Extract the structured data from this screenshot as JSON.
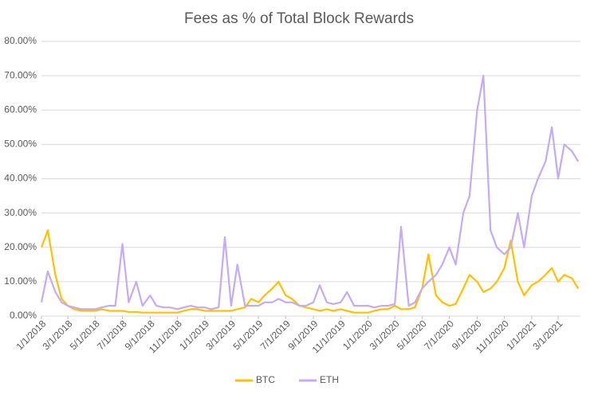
{
  "chart_data": {
    "type": "line",
    "title": "Fees as % of Total Block Rewards",
    "x": [
      "1/1/2018",
      "1/15/2018",
      "2/1/2018",
      "2/15/2018",
      "3/1/2018",
      "3/15/2018",
      "4/1/2018",
      "4/15/2018",
      "5/1/2018",
      "5/15/2018",
      "6/1/2018",
      "6/15/2018",
      "7/1/2018",
      "7/15/2018",
      "8/1/2018",
      "8/15/2018",
      "9/1/2018",
      "9/15/2018",
      "10/1/2018",
      "10/15/2018",
      "11/1/2018",
      "11/15/2018",
      "12/1/2018",
      "12/15/2018",
      "1/1/2019",
      "1/15/2019",
      "2/1/2019",
      "2/15/2019",
      "3/1/2019",
      "3/15/2019",
      "4/1/2019",
      "4/15/2019",
      "5/1/2019",
      "5/15/2019",
      "6/1/2019",
      "6/15/2019",
      "7/1/2019",
      "7/15/2019",
      "8/1/2019",
      "8/15/2019",
      "9/1/2019",
      "9/15/2019",
      "10/1/2019",
      "10/15/2019",
      "11/1/2019",
      "11/15/2019",
      "12/1/2019",
      "12/15/2019",
      "1/1/2020",
      "1/15/2020",
      "2/1/2020",
      "2/15/2020",
      "3/1/2020",
      "3/15/2020",
      "4/1/2020",
      "4/15/2020",
      "5/1/2020",
      "5/15/2020",
      "6/1/2020",
      "6/15/2020",
      "7/1/2020",
      "7/15/2020",
      "8/1/2020",
      "8/15/2020",
      "9/1/2020",
      "9/15/2020",
      "10/1/2020",
      "10/15/2020",
      "11/1/2020",
      "11/15/2020",
      "12/1/2020",
      "12/15/2020",
      "1/1/2021",
      "1/15/2021",
      "2/1/2021",
      "2/15/2021",
      "3/1/2021",
      "3/15/2021",
      "4/1/2021",
      "4/15/2021"
    ],
    "series": [
      {
        "name": "BTC",
        "color": "#ffc000",
        "values": [
          20,
          25,
          12,
          5,
          3,
          2,
          1.5,
          1.5,
          1.5,
          2,
          1.5,
          1.5,
          1.5,
          1.2,
          1.2,
          1,
          1,
          1,
          1,
          1,
          1,
          1.5,
          2,
          2,
          1.5,
          1.5,
          1.5,
          1.5,
          1.5,
          2,
          2.5,
          5,
          4,
          6,
          8,
          10,
          6,
          5,
          3,
          2.5,
          2,
          1.5,
          2,
          1.5,
          2,
          1.5,
          1,
          1,
          1,
          1.5,
          2,
          2,
          3,
          2,
          2,
          2.5,
          8,
          18,
          6,
          4,
          3,
          3.5,
          8,
          12,
          10,
          7,
          8,
          10,
          14,
          22,
          10,
          6,
          9,
          10,
          12,
          14,
          10,
          12,
          11,
          8
        ]
      },
      {
        "name": "ETH",
        "color": "#c5aaf5",
        "values": [
          4,
          13,
          7,
          4,
          3,
          2.5,
          2,
          2,
          2,
          2.5,
          3,
          3,
          21,
          4,
          10,
          3,
          6,
          3,
          2.5,
          2.5,
          2,
          2.5,
          3,
          2.5,
          2.5,
          2,
          2.5,
          23,
          3,
          15,
          3,
          3,
          3,
          4,
          4,
          5,
          4,
          4,
          3,
          3,
          4,
          9,
          4,
          3.5,
          4,
          7,
          3,
          3,
          3,
          2.5,
          3,
          3,
          3.5,
          26,
          3,
          4,
          8,
          10,
          12,
          15,
          20,
          15,
          30,
          35,
          60,
          70,
          25,
          20,
          18,
          20,
          30,
          20,
          35,
          40,
          45,
          55,
          40,
          50,
          48,
          45
        ]
      }
    ],
    "xlim": [
      "1/1/2018",
      "4/20/2021"
    ],
    "xticks": [
      "1/1/2018",
      "3/1/2018",
      "5/1/2018",
      "7/1/2018",
      "9/1/2018",
      "11/1/2018",
      "1/1/2019",
      "3/1/2019",
      "5/1/2019",
      "7/1/2019",
      "9/1/2019",
      "11/1/2019",
      "1/1/2020",
      "3/1/2020",
      "5/1/2020",
      "7/1/2020",
      "9/1/2020",
      "11/1/2020",
      "1/1/2021",
      "3/1/2021"
    ],
    "ylim": [
      0,
      80
    ],
    "yticks": [
      {
        "value": 0,
        "label": "0.00%"
      },
      {
        "value": 10,
        "label": "10.00%"
      },
      {
        "value": 20,
        "label": "20.00%"
      },
      {
        "value": 30,
        "label": "30.00%"
      },
      {
        "value": 40,
        "label": "40.00%"
      },
      {
        "value": 50,
        "label": "50.00%"
      },
      {
        "value": 60,
        "label": "60.00%"
      },
      {
        "value": 70,
        "label": "70.00%"
      },
      {
        "value": 80,
        "label": "80.00%"
      }
    ],
    "grid": true,
    "legend": "bottom"
  }
}
